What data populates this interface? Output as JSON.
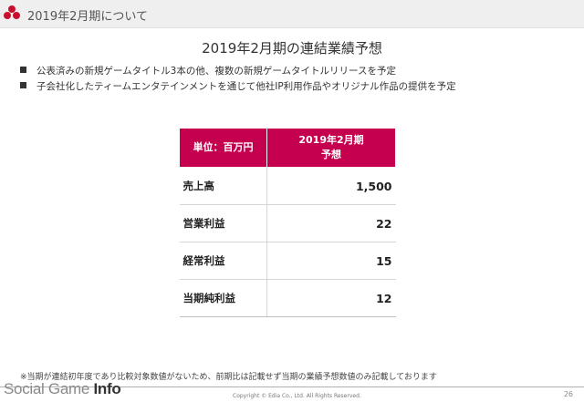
{
  "header": {
    "title": "2019年2月期について"
  },
  "slide": {
    "title": "2019年2月期の連結業績予想",
    "bullets": [
      "公表済みの新規ゲームタイトル3本の他、複数の新規ゲームタイトルリリースを予定",
      "子会社化したティームエンタテインメントを通じて他社IP利用作品やオリジナル作品の提供を予定"
    ]
  },
  "table": {
    "unit_header": "単位：百万円",
    "period_header_line1": "2019年2月期",
    "period_header_line2": "予想",
    "rows": [
      {
        "label": "売上高",
        "value": "1,500"
      },
      {
        "label": "営業利益",
        "value": "22"
      },
      {
        "label": "経常利益",
        "value": "15"
      },
      {
        "label": "当期純利益",
        "value": "12"
      }
    ]
  },
  "footnote": "※当期が連結初年度であり比較対象数値がないため、前期比は記載せず当期の業績予想数値のみ記載しております",
  "footer": {
    "watermark_light": "Social Game ",
    "watermark_bold": "Info",
    "copyright": "Copyright © Edia Co., Ltd. All Rights Reserved.",
    "page_number": "26"
  },
  "colors": {
    "accent": "#c5004f",
    "logo": "#c8102e"
  }
}
